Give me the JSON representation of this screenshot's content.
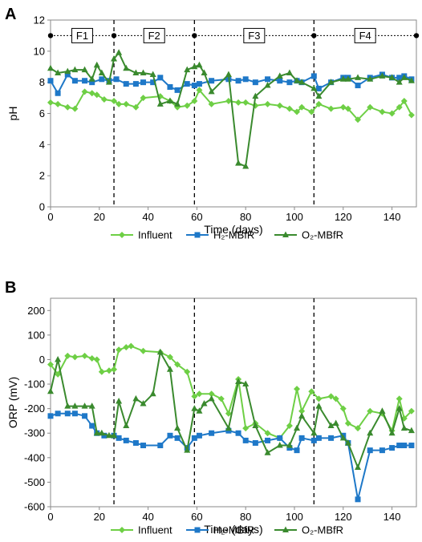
{
  "chart_data": [
    {
      "panel": "A",
      "type": "line",
      "xlabel": "Time (days)",
      "ylabel": "pH",
      "xlim": [
        0,
        150
      ],
      "ylim": [
        0,
        12
      ],
      "xticks": [
        0,
        20,
        40,
        60,
        80,
        100,
        120,
        140
      ],
      "yticks": [
        0,
        2,
        4,
        6,
        8,
        10,
        12
      ],
      "phase_boundaries": [
        26,
        59,
        108
      ],
      "phase_line_y": 11,
      "phase_markers": [
        0,
        26,
        59,
        108,
        150
      ],
      "phases": [
        {
          "label": "F1",
          "x": 13
        },
        {
          "label": "F2",
          "x": 42.5
        },
        {
          "label": "F3",
          "x": 83.5
        },
        {
          "label": "F4",
          "x": 129
        }
      ],
      "series": [
        {
          "name": "Influent",
          "color": "#6ECF45",
          "marker": "diamond",
          "x": [
            0,
            3,
            7,
            10,
            14,
            17,
            19,
            22,
            26,
            28,
            31,
            35,
            38,
            45,
            49,
            52,
            56,
            59,
            61,
            66,
            73,
            77,
            80,
            84,
            89,
            94,
            98,
            101,
            103,
            107,
            110,
            115,
            120,
            122,
            126,
            131,
            136,
            140,
            143,
            145,
            148
          ],
          "y": [
            6.7,
            6.6,
            6.4,
            6.3,
            7.4,
            7.3,
            7.2,
            6.9,
            6.8,
            6.6,
            6.6,
            6.4,
            7.0,
            7.1,
            6.8,
            6.4,
            6.5,
            6.8,
            7.5,
            6.6,
            6.8,
            6.7,
            6.7,
            6.5,
            6.6,
            6.5,
            6.3,
            6.1,
            6.4,
            6.1,
            6.6,
            6.3,
            6.4,
            6.3,
            5.6,
            6.4,
            6.1,
            6.0,
            6.4,
            6.8,
            5.9
          ]
        },
        {
          "name": "H₂-MBfR",
          "color": "#1E78C8",
          "marker": "square",
          "x": [
            0,
            3,
            7,
            10,
            14,
            17,
            21,
            24,
            27,
            31,
            35,
            38,
            42,
            45,
            49,
            52,
            56,
            59,
            61,
            66,
            73,
            77,
            80,
            84,
            89,
            94,
            98,
            101,
            103,
            108,
            110,
            115,
            120,
            122,
            126,
            131,
            136,
            140,
            143,
            145,
            148
          ],
          "y": [
            8.1,
            7.3,
            8.5,
            8.1,
            8.1,
            8.0,
            8.2,
            8.1,
            8.2,
            7.9,
            7.9,
            8.0,
            8.0,
            8.3,
            7.7,
            7.5,
            7.9,
            7.8,
            7.9,
            8.1,
            8.2,
            8.1,
            8.2,
            8.0,
            8.2,
            8.1,
            8.0,
            8.1,
            8.0,
            8.4,
            7.6,
            8.0,
            8.3,
            8.3,
            7.8,
            8.3,
            8.5,
            8.3,
            8.3,
            8.4,
            8.2
          ]
        },
        {
          "name": "O₂-MBfR",
          "color": "#3A8A2E",
          "marker": "triangle",
          "x": [
            0,
            3,
            7,
            10,
            14,
            17,
            19,
            21,
            24,
            26,
            28,
            31,
            35,
            38,
            42,
            45,
            49,
            52,
            56,
            59,
            61,
            63,
            66,
            73,
            77,
            80,
            84,
            89,
            94,
            98,
            101,
            103,
            108,
            110,
            115,
            120,
            122,
            126,
            131,
            136,
            140,
            143,
            145,
            148
          ],
          "y": [
            8.9,
            8.6,
            8.7,
            8.8,
            8.8,
            8.2,
            9.1,
            8.6,
            8.0,
            9.5,
            9.9,
            8.9,
            8.6,
            8.6,
            8.5,
            6.6,
            6.8,
            6.6,
            8.8,
            9.0,
            9.1,
            8.6,
            7.4,
            8.5,
            2.8,
            2.6,
            7.1,
            7.8,
            8.4,
            8.6,
            8.1,
            8.0,
            7.6,
            7.1,
            8.0,
            8.2,
            8.2,
            8.3,
            8.2,
            8.4,
            8.3,
            8.0,
            8.3,
            8.1
          ]
        }
      ]
    },
    {
      "panel": "B",
      "type": "line",
      "xlabel": "Time (days)",
      "ylabel": "ORP (mV)",
      "xlim": [
        0,
        150
      ],
      "ylim": [
        -600,
        250
      ],
      "xticks": [
        0,
        20,
        40,
        60,
        80,
        100,
        120,
        140
      ],
      "yticks": [
        -600,
        -500,
        -400,
        -300,
        -200,
        -100,
        0,
        100,
        200
      ],
      "phase_boundaries": [
        26,
        59,
        108
      ],
      "series": [
        {
          "name": "Influent",
          "color": "#6ECF45",
          "marker": "diamond",
          "x": [
            0,
            3,
            7,
            10,
            14,
            17,
            19,
            21,
            24,
            26,
            28,
            31,
            33,
            38,
            45,
            49,
            52,
            56,
            59,
            61,
            66,
            70,
            73,
            77,
            80,
            84,
            89,
            94,
            98,
            101,
            103,
            107,
            110,
            115,
            117,
            120,
            122,
            126,
            131,
            136,
            140,
            143,
            145,
            148
          ],
          "y": [
            -20,
            -60,
            15,
            10,
            15,
            5,
            0,
            -50,
            -45,
            -40,
            40,
            50,
            55,
            35,
            30,
            10,
            -20,
            -50,
            -150,
            -140,
            -140,
            -160,
            -220,
            -80,
            -280,
            -260,
            -300,
            -320,
            -270,
            -120,
            -210,
            -130,
            -160,
            -150,
            -160,
            -200,
            -260,
            -280,
            -210,
            -220,
            -290,
            -160,
            -240,
            -210
          ]
        },
        {
          "name": "H₂-MBfR",
          "color": "#1E78C8",
          "marker": "square",
          "x": [
            0,
            3,
            7,
            10,
            14,
            17,
            19,
            22,
            26,
            28,
            31,
            35,
            38,
            45,
            49,
            52,
            56,
            59,
            61,
            66,
            73,
            77,
            80,
            84,
            89,
            94,
            98,
            101,
            103,
            108,
            110,
            115,
            120,
            122,
            126,
            131,
            136,
            140,
            143,
            145,
            148
          ],
          "y": [
            -230,
            -220,
            -220,
            -220,
            -230,
            -270,
            -300,
            -310,
            -310,
            -320,
            -330,
            -340,
            -350,
            -350,
            -310,
            -320,
            -360,
            -320,
            -310,
            -300,
            -290,
            -300,
            -330,
            -340,
            -330,
            -320,
            -360,
            -370,
            -320,
            -330,
            -320,
            -320,
            -310,
            -340,
            -570,
            -370,
            -370,
            -360,
            -350,
            -350,
            -350
          ]
        },
        {
          "name": "O₂-MBfR",
          "color": "#3A8A2E",
          "marker": "triangle",
          "x": [
            0,
            3,
            7,
            10,
            14,
            17,
            19,
            21,
            24,
            26,
            28,
            31,
            35,
            38,
            42,
            45,
            49,
            52,
            56,
            59,
            61,
            63,
            66,
            73,
            77,
            80,
            84,
            89,
            94,
            98,
            101,
            103,
            108,
            110,
            115,
            117,
            120,
            122,
            126,
            131,
            136,
            140,
            143,
            145,
            148
          ],
          "y": [
            -130,
            0,
            -190,
            -190,
            -190,
            -190,
            -300,
            -300,
            -310,
            -310,
            -170,
            -270,
            -160,
            -180,
            -140,
            30,
            -40,
            -280,
            -370,
            -200,
            -210,
            -180,
            -160,
            -280,
            -90,
            -100,
            -270,
            -380,
            -350,
            -350,
            -280,
            -230,
            -300,
            -190,
            -270,
            -260,
            -320,
            -340,
            -440,
            -300,
            -210,
            -300,
            -200,
            -280,
            -290
          ]
        }
      ]
    }
  ]
}
